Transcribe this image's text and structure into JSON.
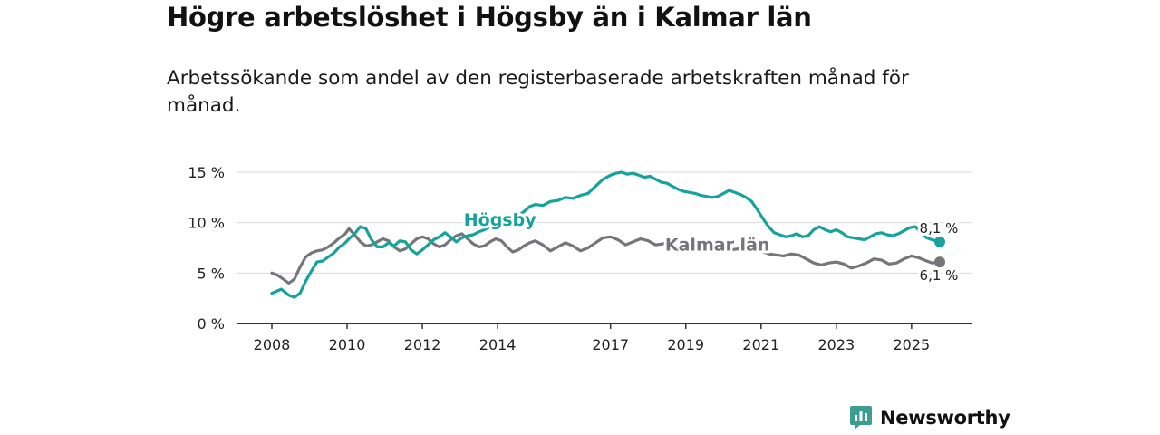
{
  "header": {
    "title": "Högre arbetslöshet i Högsby än i Kalmar län",
    "subtitle": "Arbetssökande som andel av den registerbaserade arbetskraften månad för månad."
  },
  "colors": {
    "hogsby": "#16a39a",
    "kalmar": "#76767a",
    "grid": "#d9d9d9",
    "axis": "#333333"
  },
  "chart_data": {
    "type": "line",
    "title": "Högre arbetslöshet i Högsby än i Kalmar län",
    "subtitle": "Arbetssökande som andel av den registerbaserade arbetskraften månad för månad.",
    "xlabel": "",
    "ylabel": "",
    "ylim": [
      0,
      15
    ],
    "xlim": [
      2008.0,
      2025.75
    ],
    "y_ticks": [
      0,
      5,
      10,
      15
    ],
    "y_tick_labels": [
      "0 %",
      "5 %",
      "10 %",
      "15 %"
    ],
    "x_ticks": [
      2008,
      2010,
      2012,
      2014,
      2017,
      2019,
      2021,
      2023,
      2025
    ],
    "x_tick_labels": [
      "2008",
      "2010",
      "2012",
      "2014",
      "2017",
      "2019",
      "2021",
      "2023",
      "2025"
    ],
    "grid": true,
    "series": [
      {
        "name": "Högsby",
        "label": "Högsby",
        "end_label": "8,1 %",
        "x": [
          2008.0,
          2008.25,
          2008.45,
          2008.6,
          2008.75,
          2008.9,
          2009.05,
          2009.2,
          2009.35,
          2009.5,
          2009.65,
          2009.8,
          2009.95,
          2010.05,
          2010.2,
          2010.35,
          2010.5,
          2010.65,
          2010.8,
          2010.95,
          2011.1,
          2011.25,
          2011.4,
          2011.55,
          2011.7,
          2011.85,
          2012.0,
          2012.15,
          2012.3,
          2012.45,
          2012.6,
          2012.75,
          2012.9,
          2013.05,
          2013.2,
          2013.35,
          2013.5,
          2013.65,
          2013.8,
          2013.95,
          2014.1,
          2014.25,
          2014.4,
          2014.55,
          2014.7,
          2014.85,
          2015.0,
          2015.2,
          2015.4,
          2015.6,
          2015.8,
          2016.0,
          2016.2,
          2016.4,
          2016.6,
          2016.8,
          2017.0,
          2017.15,
          2017.3,
          2017.45,
          2017.6,
          2017.75,
          2017.9,
          2018.05,
          2018.2,
          2018.35,
          2018.5,
          2018.65,
          2018.8,
          2018.95,
          2019.1,
          2019.25,
          2019.4,
          2019.55,
          2019.7,
          2019.85,
          2020.0,
          2020.15,
          2020.3,
          2020.45,
          2020.6,
          2020.75,
          2020.9,
          2021.05,
          2021.2,
          2021.35,
          2021.5,
          2021.65,
          2021.8,
          2021.95,
          2022.1,
          2022.25,
          2022.4,
          2022.55,
          2022.7,
          2022.85,
          2023.0,
          2023.15,
          2023.3,
          2023.45,
          2023.6,
          2023.75,
          2023.9,
          2024.05,
          2024.2,
          2024.35,
          2024.5,
          2024.65,
          2024.8,
          2024.95,
          2025.1,
          2025.25,
          2025.4,
          2025.55,
          2025.75
        ],
        "values": [
          3.0,
          3.4,
          2.8,
          2.6,
          3.0,
          4.2,
          5.2,
          6.1,
          6.2,
          6.6,
          7.0,
          7.6,
          8.0,
          8.4,
          8.9,
          9.6,
          9.4,
          8.3,
          7.6,
          7.6,
          8.0,
          7.7,
          8.2,
          8.1,
          7.3,
          6.9,
          7.3,
          7.8,
          8.3,
          8.6,
          9.0,
          8.6,
          8.1,
          8.5,
          8.7,
          8.8,
          9.1,
          9.3,
          9.6,
          9.9,
          10.2,
          10.0,
          10.3,
          10.7,
          11.1,
          11.6,
          11.8,
          11.7,
          12.1,
          12.2,
          12.5,
          12.4,
          12.7,
          12.9,
          13.6,
          14.3,
          14.7,
          14.9,
          15.0,
          14.8,
          14.9,
          14.7,
          14.5,
          14.6,
          14.3,
          14.0,
          13.9,
          13.6,
          13.3,
          13.1,
          13.0,
          12.9,
          12.7,
          12.6,
          12.5,
          12.6,
          12.9,
          13.2,
          13.0,
          12.8,
          12.5,
          12.1,
          11.3,
          10.4,
          9.6,
          9.0,
          8.8,
          8.6,
          8.7,
          8.9,
          8.6,
          8.7,
          9.3,
          9.6,
          9.3,
          9.1,
          9.3,
          9.0,
          8.6,
          8.5,
          8.4,
          8.3,
          8.6,
          8.9,
          9.0,
          8.8,
          8.7,
          8.9,
          9.2,
          9.5,
          9.6,
          9.0,
          8.5,
          8.3,
          8.1
        ]
      },
      {
        "name": "Kalmar län",
        "label": "Kalmar län",
        "end_label": "6,1 %",
        "x": [
          2008.0,
          2008.15,
          2008.3,
          2008.45,
          2008.6,
          2008.75,
          2008.9,
          2009.05,
          2009.2,
          2009.35,
          2009.5,
          2009.65,
          2009.8,
          2009.95,
          2010.05,
          2010.2,
          2010.35,
          2010.5,
          2010.65,
          2010.8,
          2010.95,
          2011.1,
          2011.25,
          2011.4,
          2011.55,
          2011.7,
          2011.85,
          2012.0,
          2012.15,
          2012.3,
          2012.45,
          2012.6,
          2012.75,
          2012.9,
          2013.05,
          2013.2,
          2013.35,
          2013.5,
          2013.65,
          2013.8,
          2013.95,
          2014.1,
          2014.25,
          2014.4,
          2014.55,
          2014.7,
          2014.85,
          2015.0,
          2015.2,
          2015.4,
          2015.6,
          2015.8,
          2016.0,
          2016.2,
          2016.4,
          2016.6,
          2016.8,
          2017.0,
          2017.2,
          2017.4,
          2017.6,
          2017.8,
          2018.0,
          2018.2,
          2018.4,
          2018.6,
          2018.8,
          2019.0,
          2019.2,
          2019.4,
          2019.6,
          2019.8,
          2020.0,
          2020.2,
          2020.4,
          2020.6,
          2020.8,
          2021.0,
          2021.2,
          2021.4,
          2021.6,
          2021.8,
          2022.0,
          2022.2,
          2022.4,
          2022.6,
          2022.8,
          2023.0,
          2023.2,
          2023.4,
          2023.6,
          2023.8,
          2024.0,
          2024.2,
          2024.4,
          2024.6,
          2024.8,
          2025.0,
          2025.2,
          2025.4,
          2025.55,
          2025.75
        ],
        "values": [
          5.0,
          4.8,
          4.4,
          4.0,
          4.4,
          5.6,
          6.6,
          7.0,
          7.2,
          7.3,
          7.6,
          8.0,
          8.5,
          8.9,
          9.4,
          8.8,
          8.1,
          7.7,
          7.8,
          8.1,
          8.4,
          8.2,
          7.6,
          7.2,
          7.4,
          7.9,
          8.4,
          8.6,
          8.4,
          7.9,
          7.6,
          7.8,
          8.3,
          8.7,
          8.9,
          8.4,
          7.9,
          7.6,
          7.7,
          8.1,
          8.4,
          8.2,
          7.6,
          7.1,
          7.3,
          7.7,
          8.0,
          8.2,
          7.8,
          7.2,
          7.6,
          8.0,
          7.7,
          7.2,
          7.5,
          8.0,
          8.5,
          8.6,
          8.3,
          7.8,
          8.1,
          8.4,
          8.2,
          7.8,
          7.9,
          8.3,
          8.2,
          7.8,
          7.9,
          8.2,
          8.0,
          7.7,
          7.5,
          7.3,
          7.4,
          7.6,
          7.4,
          7.2,
          6.9,
          6.8,
          6.7,
          6.9,
          6.8,
          6.4,
          6.0,
          5.8,
          6.0,
          6.1,
          5.9,
          5.5,
          5.7,
          6.0,
          6.4,
          6.3,
          5.9,
          6.0,
          6.4,
          6.7,
          6.5,
          6.2,
          6.0,
          6.1
        ]
      }
    ]
  },
  "brand": {
    "name": "Newsworthy"
  }
}
